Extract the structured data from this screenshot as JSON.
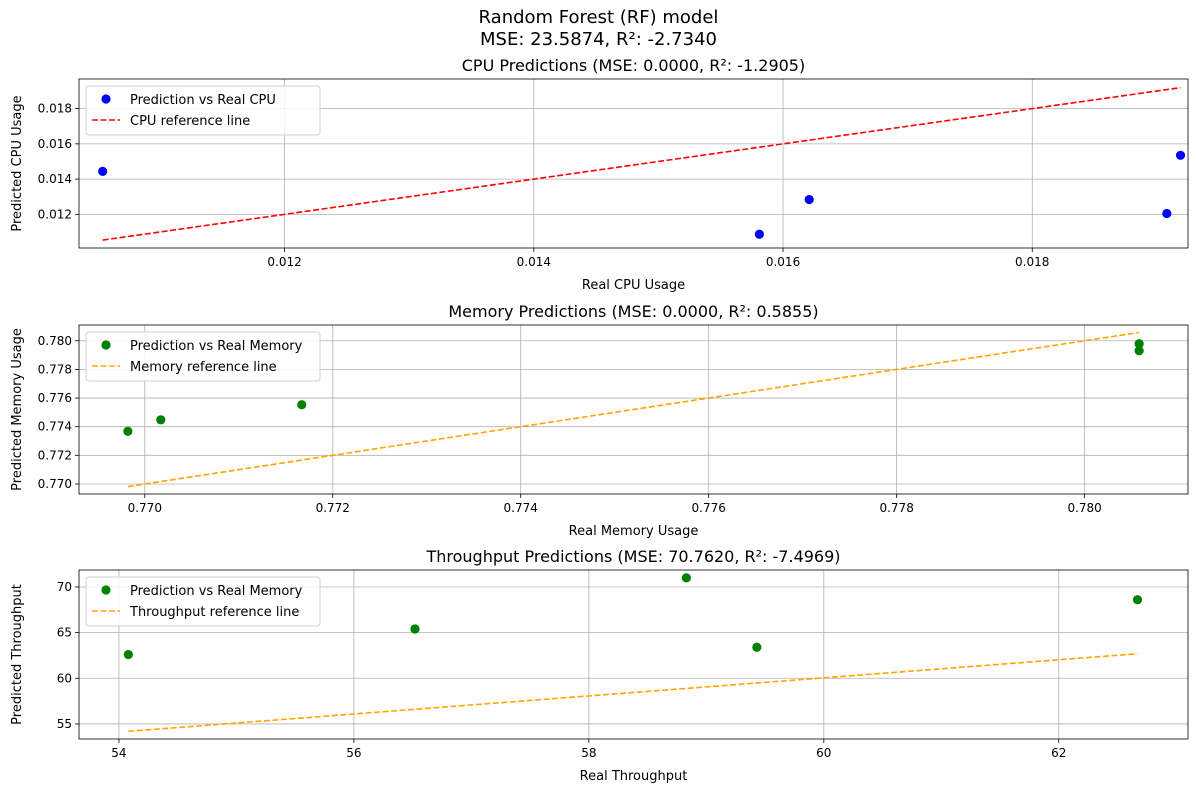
{
  "figure": {
    "title_line1": "Random Forest (RF) model",
    "title_line2": "MSE: 23.5874, R²: -2.7340"
  },
  "chart_data": [
    {
      "type": "scatter",
      "title": "CPU Predictions (MSE: 0.0000, R²: -1.2905)",
      "xlabel": "Real CPU Usage",
      "ylabel": "Predicted CPU Usage",
      "xlim": [
        0.01035,
        0.01925
      ],
      "ylim": [
        0.01009,
        0.01968
      ],
      "xticks": [
        0.012,
        0.014,
        0.016,
        0.018
      ],
      "xtick_labels": [
        "0.012",
        "0.014",
        "0.016",
        "0.018"
      ],
      "yticks": [
        0.012,
        0.014,
        0.016,
        0.018
      ],
      "ytick_labels": [
        "0.012",
        "0.014",
        "0.016",
        "0.018"
      ],
      "grid": true,
      "legend_position": "upper left",
      "series": [
        {
          "name": "Prediction vs Real CPU",
          "kind": "scatter",
          "color": "#0000ff",
          "points": [
            {
              "x": 0.01054,
              "y": 0.01444
            },
            {
              "x": 0.01581,
              "y": 0.01087
            },
            {
              "x": 0.01621,
              "y": 0.01284
            },
            {
              "x": 0.01908,
              "y": 0.01205
            },
            {
              "x": 0.01919,
              "y": 0.01535
            }
          ]
        },
        {
          "name": "CPU reference line",
          "kind": "line",
          "color": "#ff0000",
          "dash": "dashed",
          "points": [
            {
              "x": 0.01054,
              "y": 0.01054
            },
            {
              "x": 0.01919,
              "y": 0.01919
            }
          ]
        }
      ]
    },
    {
      "type": "scatter",
      "title": "Memory Predictions (MSE: 0.0000, R²: 0.5855)",
      "xlabel": "Real Memory Usage",
      "ylabel": "Predicted Memory Usage",
      "xlim": [
        0.7693,
        0.7811
      ],
      "ylim": [
        0.7693,
        0.7811
      ],
      "xticks": [
        0.77,
        0.772,
        0.774,
        0.776,
        0.778,
        0.78
      ],
      "xtick_labels": [
        "0.770",
        "0.772",
        "0.774",
        "0.776",
        "0.778",
        "0.780"
      ],
      "yticks": [
        0.77,
        0.772,
        0.774,
        0.776,
        0.778,
        0.78
      ],
      "ytick_labels": [
        "0.770",
        "0.772",
        "0.774",
        "0.776",
        "0.778",
        "0.780"
      ],
      "grid": true,
      "legend_position": "upper left",
      "series": [
        {
          "name": "Prediction vs Real Memory",
          "kind": "scatter",
          "color": "#008000",
          "points": [
            {
              "x": 0.76982,
              "y": 0.77368
            },
            {
              "x": 0.77017,
              "y": 0.77448
            },
            {
              "x": 0.77167,
              "y": 0.77553
            },
            {
              "x": 0.78058,
              "y": 0.77979
            },
            {
              "x": 0.78058,
              "y": 0.7793
            }
          ]
        },
        {
          "name": "Memory reference line",
          "kind": "line",
          "color": "#ffa500",
          "dash": "dashed",
          "points": [
            {
              "x": 0.76982,
              "y": 0.76982
            },
            {
              "x": 0.78058,
              "y": 0.78058
            }
          ]
        }
      ]
    },
    {
      "type": "scatter",
      "title": "Throughput Predictions (MSE: 70.7620, R²: -7.4969)",
      "xlabel": "Real Throughput",
      "ylabel": "Predicted Throughput",
      "xlim": [
        53.66,
        63.1
      ],
      "ylim": [
        53.35,
        71.86
      ],
      "xticks": [
        54,
        56,
        58,
        60,
        62
      ],
      "xtick_labels": [
        "54",
        "56",
        "58",
        "60",
        "62"
      ],
      "yticks": [
        55,
        60,
        65,
        70
      ],
      "ytick_labels": [
        "55",
        "60",
        "65",
        "70"
      ],
      "grid": true,
      "legend_position": "upper left",
      "series": [
        {
          "name": "Prediction vs Real Memory",
          "kind": "scatter",
          "color": "#008000",
          "points": [
            {
              "x": 54.08,
              "y": 62.6
            },
            {
              "x": 56.52,
              "y": 65.4
            },
            {
              "x": 58.83,
              "y": 71.0
            },
            {
              "x": 59.43,
              "y": 63.4
            },
            {
              "x": 62.67,
              "y": 68.6
            }
          ]
        },
        {
          "name": "Throughput reference line",
          "kind": "line",
          "color": "#ffa500",
          "dash": "dashed",
          "points": [
            {
              "x": 54.08,
              "y": 54.19
            },
            {
              "x": 62.67,
              "y": 62.69
            }
          ]
        }
      ]
    }
  ]
}
